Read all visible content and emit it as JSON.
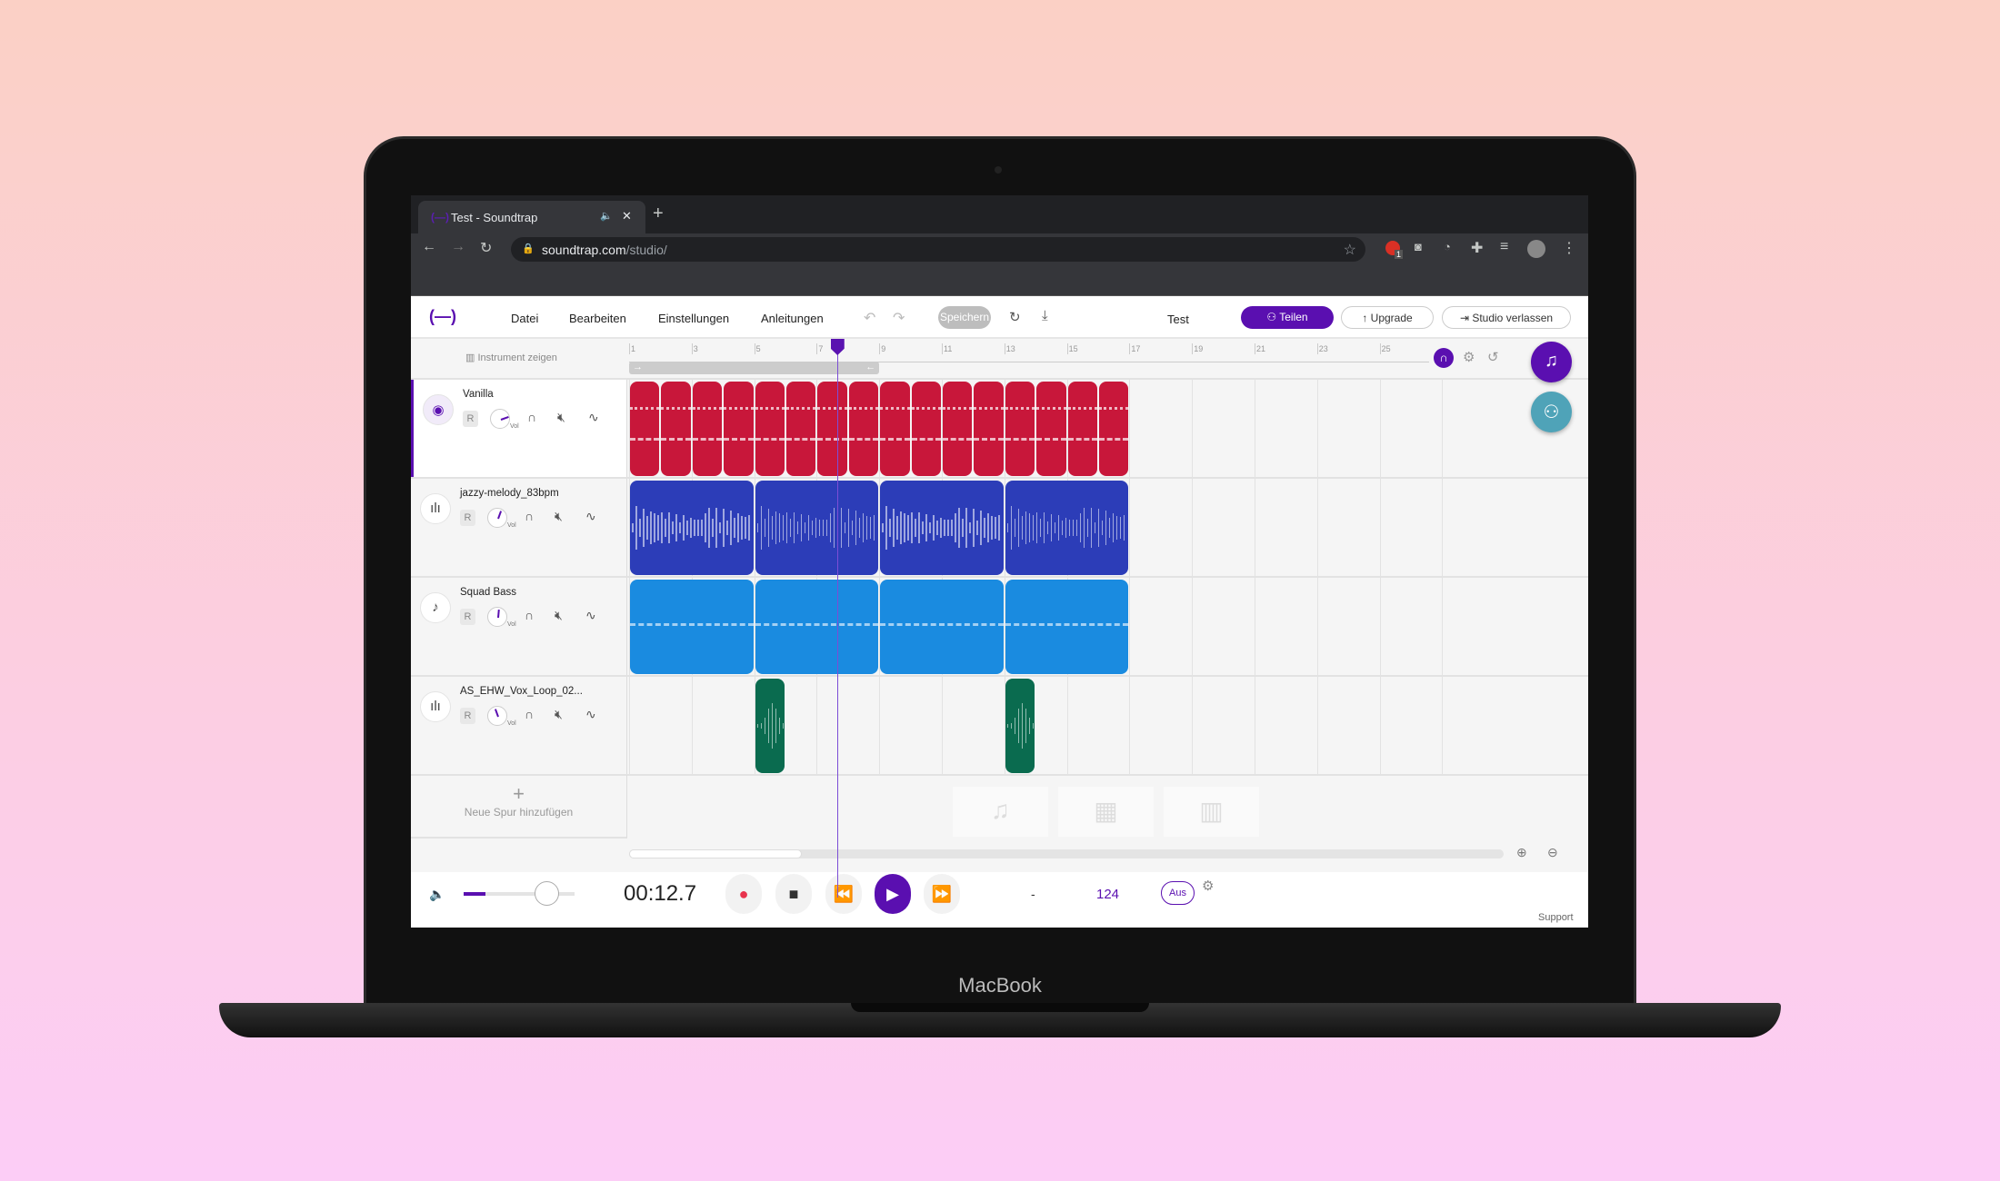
{
  "laptop": {
    "brand": "MacBook"
  },
  "browser": {
    "tab_title": "Test - Soundtrap",
    "url_host": "soundtrap.com",
    "url_path": "/studio/",
    "extension_badge": "1"
  },
  "header": {
    "menu": [
      "Datei",
      "Bearbeiten",
      "Einstellungen",
      "Anleitungen"
    ],
    "save_label": "Speichern",
    "project_title": "Test",
    "share_label": "Teilen",
    "upgrade_label": "Upgrade",
    "leave_label": "Studio verlassen"
  },
  "ruler": {
    "show_instrument_label": "Instrument zeigen",
    "ticks": [
      "1",
      "3",
      "5",
      "7",
      "9",
      "11",
      "13",
      "15",
      "17",
      "19",
      "21",
      "23",
      "25"
    ],
    "loop_start_bar": 1,
    "loop_end_bar": 9,
    "playhead_bar": 7.65
  },
  "tracks": [
    {
      "name": "Vanilla",
      "icon": "drum-icon",
      "color": "#c8173a",
      "clips": [
        [
          1,
          2
        ],
        [
          2,
          3
        ],
        [
          3,
          4
        ],
        [
          4,
          5
        ],
        [
          5,
          6
        ],
        [
          6,
          7
        ],
        [
          7,
          8
        ],
        [
          8,
          9
        ],
        [
          9,
          10
        ],
        [
          10,
          11
        ],
        [
          11,
          12
        ],
        [
          12,
          13
        ],
        [
          13,
          14
        ],
        [
          14,
          15
        ],
        [
          15,
          16
        ],
        [
          16,
          17
        ]
      ],
      "record_label": "R",
      "vol_label": "Vol",
      "selected": true
    },
    {
      "name": "jazzy-melody_83bpm",
      "icon": "waveform-icon",
      "color": "#2c3db8",
      "clips": [
        [
          1,
          5
        ],
        [
          5,
          9
        ],
        [
          9,
          13
        ],
        [
          13,
          17
        ]
      ],
      "record_label": "R",
      "vol_label": "Vol"
    },
    {
      "name": "Squad Bass",
      "icon": "guitar-icon",
      "color": "#1a8be0",
      "clips": [
        [
          1,
          5
        ],
        [
          5,
          9
        ],
        [
          9,
          13
        ],
        [
          13,
          17
        ]
      ],
      "record_label": "R",
      "vol_label": "Vol"
    },
    {
      "name": "AS_EHW_Vox_Loop_02...",
      "icon": "waveform-icon",
      "color": "#0a6b4f",
      "clips": [
        [
          5,
          6
        ],
        [
          13,
          14
        ]
      ],
      "record_label": "R",
      "vol_label": "Vol"
    }
  ],
  "add_track_label": "Neue Spur hinzufügen",
  "transport": {
    "time": "00:12.7",
    "key": "-",
    "tempo": "124",
    "metronome_label": "Aus",
    "support_label": "Support",
    "master_volume": 0.2
  },
  "colors": {
    "accent": "#5a0fb0"
  }
}
